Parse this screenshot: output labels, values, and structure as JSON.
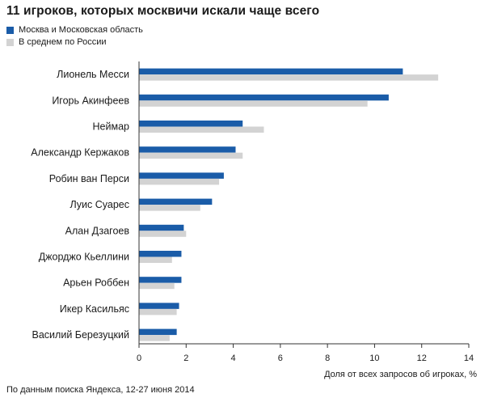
{
  "chart_data": {
    "type": "bar",
    "orientation": "horizontal",
    "title": "11 игроков, которых москвичи искали чаще всего",
    "xlabel": "Доля от всех запросов об игроках, %",
    "xlim": [
      0,
      14
    ],
    "xticks": [
      0,
      2,
      4,
      6,
      8,
      10,
      12,
      14
    ],
    "categories": [
      "Лионель Месси",
      "Игорь Акинфеев",
      "Неймар",
      "Александр Кержаков",
      "Робин ван Перси",
      "Луис Суарес",
      "Алан Дзагоев",
      "Джорджо Кьеллини",
      "Арьен Роббен",
      "Икер Касильяс",
      "Василий Березуцкий"
    ],
    "series": [
      {
        "name": "Москва  и Московская  область",
        "color": "#1a5ca8",
        "values": [
          11.2,
          10.6,
          4.4,
          4.1,
          3.6,
          3.1,
          1.9,
          1.8,
          1.8,
          1.7,
          1.6
        ]
      },
      {
        "name": "В среднем по России",
        "color": "#d3d3d3",
        "values": [
          12.7,
          9.7,
          5.3,
          4.4,
          3.4,
          2.6,
          2.0,
          1.4,
          1.5,
          1.6,
          1.3
        ]
      }
    ],
    "legend_position": "top-left",
    "grid": false
  },
  "source": "По данным поиска Яндекса, 12-27 июня 2014"
}
